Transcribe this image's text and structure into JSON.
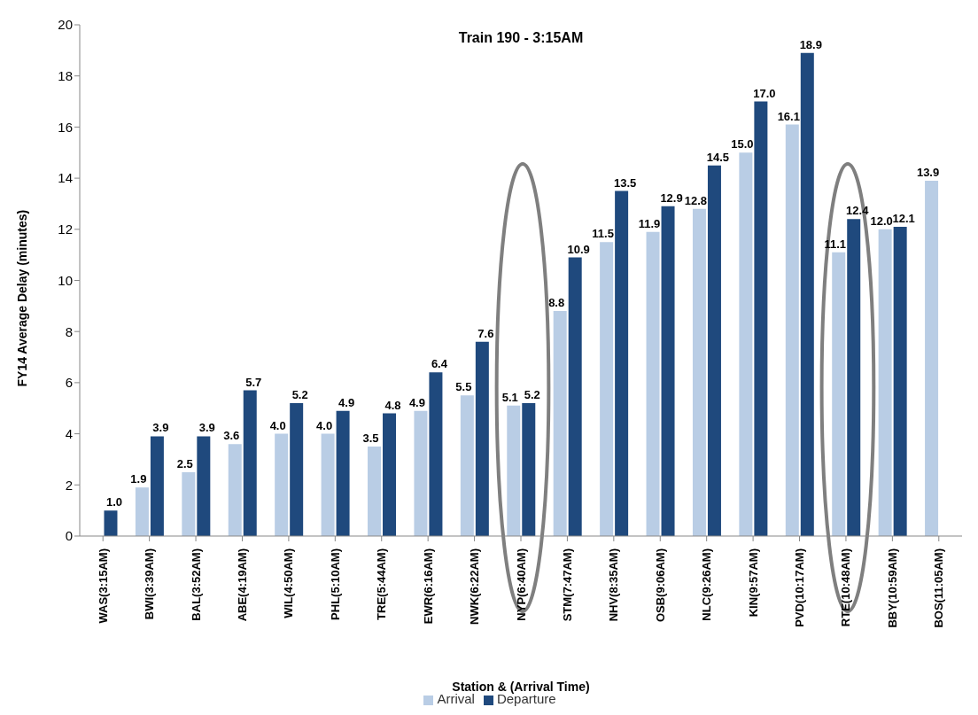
{
  "chart_data": {
    "type": "bar",
    "title": "Train 190 - 3:15AM",
    "xlabel": "Station & (Arrival Time)",
    "ylabel": "FY14 Average Delay (minutes)",
    "categories": [
      "WAS(3:15AM)",
      "BWI(3:39AM)",
      "BAL(3:52AM)",
      "ABE(4:19AM)",
      "WIL(4:50AM)",
      "PHL(5:10AM)",
      "TRE(5:44AM)",
      "EWR(6:16AM)",
      "NWK(6:22AM)",
      "NYP(6:40AM)",
      "STM(7:47AM)",
      "NHV(8:35AM)",
      "OSB(9:06AM)",
      "NLC(9:26AM)",
      "KIN(9:57AM)",
      "PVD(10:17AM)",
      "RTE(10:48AM)",
      "BBY(10:59AM)",
      "BOS(11:05AM)"
    ],
    "series": [
      {
        "name": "Arrival",
        "color": "#b9cde5",
        "values": [
          null,
          1.9,
          2.5,
          3.6,
          4.0,
          4.0,
          3.5,
          4.9,
          5.5,
          5.1,
          8.8,
          11.5,
          11.9,
          12.8,
          15.0,
          16.1,
          11.1,
          12.0,
          13.9
        ],
        "value_labels": [
          null,
          "1.9",
          "2.5",
          "3.6",
          "4.0",
          "4.0",
          "3.5",
          "4.9",
          "5.5",
          "5.1",
          "8.8",
          "11.5",
          "11.9",
          "12.8",
          "15.0",
          "16.1",
          "11.1",
          "12.0",
          "13.9"
        ]
      },
      {
        "name": "Departure",
        "color": "#1f497d",
        "values": [
          1.0,
          3.9,
          3.9,
          5.7,
          5.2,
          4.9,
          4.8,
          6.4,
          7.6,
          5.2,
          10.9,
          13.5,
          12.9,
          14.5,
          17.0,
          18.9,
          12.4,
          12.1,
          null
        ],
        "value_labels": [
          "1.0",
          "3.9",
          "3.9",
          "5.7",
          "5.2",
          "4.9",
          "4.8",
          "6.4",
          "7.6",
          "5.2",
          "10.9",
          "13.5",
          "12.9",
          "14.5",
          "17.0",
          "18.9",
          "12.4",
          "12.1",
          null
        ]
      }
    ],
    "ylim": [
      0,
      20
    ],
    "yticks": [
      0,
      2,
      4,
      6,
      8,
      10,
      12,
      14,
      16,
      18,
      20
    ],
    "grid": false,
    "legend": "bottom"
  }
}
